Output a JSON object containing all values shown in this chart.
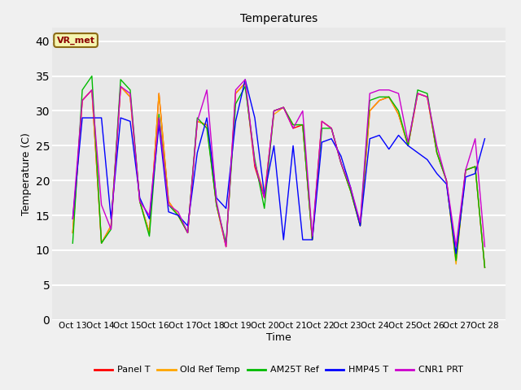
{
  "title": "Temperatures",
  "xlabel": "Time",
  "ylabel": "Temperature (C)",
  "annotation": "VR_met",
  "ylim": [
    0,
    42
  ],
  "yticks": [
    0,
    5,
    10,
    15,
    20,
    25,
    30,
    35,
    40
  ],
  "x_labels": [
    "Oct 13",
    "Oct 14",
    "Oct 15",
    "Oct 16",
    "Oct 17",
    "Oct 18",
    "Oct 19",
    "Oct 20",
    "Oct 21",
    "Oct 22",
    "Oct 23",
    "Oct 24",
    "Oct 25",
    "Oct 26",
    "Oct 27",
    "Oct 28"
  ],
  "series_colors": {
    "Panel T": "#ff0000",
    "Old Ref Temp": "#ffa500",
    "AM25T Ref": "#00bb00",
    "HMP45 T": "#0000ff",
    "CNR1 PRT": "#cc00cc"
  },
  "fig_bg": "#f0f0f0",
  "ax_bg": "#e8e8e8",
  "grid_color": "#ffffff",
  "panel_t": [
    12.5,
    31.5,
    33.0,
    11.0,
    13.5,
    33.5,
    32.0,
    17.0,
    12.5,
    32.5,
    17.0,
    15.0,
    12.5,
    28.5,
    28.0,
    16.5,
    10.5,
    32.5,
    34.0,
    22.0,
    17.5,
    30.0,
    30.5,
    27.5,
    28.0,
    11.5,
    28.5,
    27.5,
    22.5,
    18.5,
    13.5,
    30.0,
    31.5,
    32.0,
    29.5,
    25.0,
    32.5,
    32.0,
    24.0,
    20.0,
    8.5,
    21.5,
    22.0,
    7.5
  ],
  "old_ref_t": [
    12.5,
    31.5,
    33.0,
    11.0,
    13.5,
    33.5,
    32.0,
    17.0,
    12.5,
    32.5,
    17.0,
    15.0,
    12.5,
    28.5,
    28.0,
    16.5,
    10.5,
    32.5,
    34.0,
    22.5,
    18.0,
    29.5,
    30.5,
    28.0,
    28.0,
    11.5,
    28.5,
    27.5,
    22.5,
    18.5,
    13.5,
    30.0,
    31.5,
    32.0,
    29.5,
    25.0,
    32.5,
    32.0,
    24.0,
    20.0,
    8.0,
    21.5,
    22.0,
    7.5
  ],
  "am25t_ref": [
    11.0,
    33.0,
    35.0,
    11.0,
    13.0,
    34.5,
    33.0,
    17.0,
    12.0,
    29.5,
    16.5,
    15.0,
    12.5,
    29.0,
    27.5,
    16.5,
    11.0,
    31.0,
    33.5,
    23.0,
    16.0,
    30.0,
    30.5,
    28.0,
    28.0,
    11.5,
    27.5,
    27.5,
    22.5,
    18.5,
    13.5,
    31.5,
    32.0,
    32.0,
    30.0,
    25.0,
    33.0,
    32.5,
    24.0,
    20.0,
    8.5,
    21.5,
    22.0,
    7.5
  ],
  "hmp45_t": [
    14.5,
    29.0,
    29.0,
    29.0,
    14.5,
    29.0,
    28.5,
    17.5,
    14.5,
    28.0,
    15.5,
    15.0,
    13.5,
    24.0,
    29.0,
    17.5,
    16.0,
    28.5,
    34.5,
    29.0,
    18.0,
    25.0,
    11.5,
    25.0,
    11.5,
    11.5,
    25.5,
    26.0,
    23.5,
    19.0,
    13.5,
    26.0,
    26.5,
    24.5,
    26.5,
    25.0,
    24.0,
    23.0,
    21.0,
    19.5,
    9.5,
    20.5,
    21.0,
    26.0
  ],
  "cnr1_prt": [
    14.5,
    31.5,
    33.0,
    16.5,
    13.0,
    33.5,
    32.5,
    17.0,
    15.0,
    29.0,
    16.5,
    15.5,
    12.5,
    28.5,
    33.0,
    17.0,
    10.5,
    33.0,
    34.5,
    22.5,
    17.5,
    30.0,
    30.5,
    27.5,
    30.0,
    12.0,
    28.5,
    27.5,
    22.5,
    19.0,
    14.0,
    32.5,
    33.0,
    33.0,
    32.5,
    25.5,
    32.5,
    32.0,
    25.0,
    20.0,
    10.5,
    21.5,
    26.0,
    10.5
  ]
}
